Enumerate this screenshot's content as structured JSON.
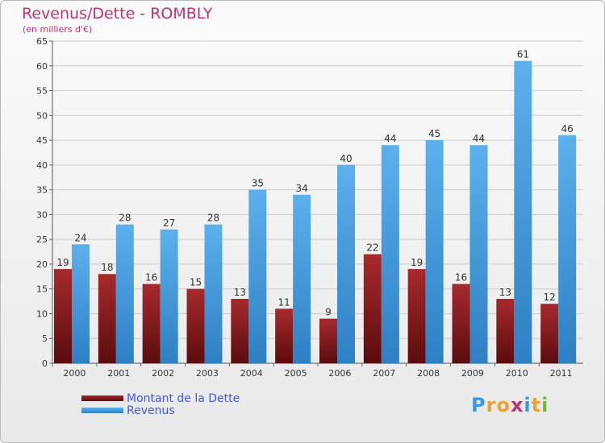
{
  "title": "Revenus/Dette - ROMBLY",
  "subtitle": "(en milliers d'€)",
  "legend": {
    "debt_label": "Montant de la Dette",
    "revenue_label": "Revenus"
  },
  "logo": {
    "text": "Proxiti"
  },
  "colors": {
    "debt": "#7b1517",
    "revenue": "#3f98dd",
    "title": "#c0336e",
    "legend_text": "#4455ee"
  },
  "chart_data": {
    "type": "bar",
    "categories": [
      "2000",
      "2001",
      "2002",
      "2003",
      "2004",
      "2005",
      "2006",
      "2007",
      "2008",
      "2009",
      "2010",
      "2011"
    ],
    "series": [
      {
        "name": "Montant de la Dette",
        "values": [
          19,
          18,
          16,
          15,
          13,
          11,
          9,
          22,
          19,
          16,
          13,
          12
        ]
      },
      {
        "name": "Revenus",
        "values": [
          24,
          28,
          27,
          28,
          35,
          34,
          40,
          44,
          45,
          44,
          61,
          46
        ]
      }
    ],
    "ylim": [
      0,
      65
    ],
    "yticks": [
      0,
      5,
      10,
      15,
      20,
      25,
      30,
      35,
      40,
      45,
      50,
      55,
      60,
      65
    ],
    "grid": true,
    "legend_position": "bottom-left"
  }
}
